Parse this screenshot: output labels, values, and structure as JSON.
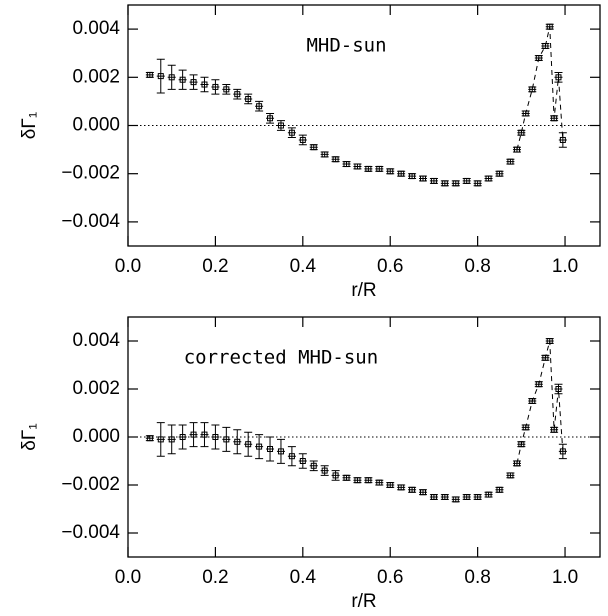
{
  "chart_data": [
    {
      "type": "errorbar-scatter",
      "annotation": "MHD-sun",
      "xlabel": "r/R",
      "ylabel": "δΓ₁",
      "xlim": [
        0,
        1.08
      ],
      "ylim": [
        -0.005,
        0.005
      ],
      "xticks": [
        {
          "value": 0,
          "label": "0.0"
        },
        0.2,
        0.4,
        0.6,
        0.8,
        {
          "value": 1,
          "label": "1.0"
        }
      ],
      "yticks": [
        {
          "value": -0.004,
          "label": "−0.004"
        },
        {
          "value": -0.002,
          "label": "−0.002"
        },
        {
          "value": 0,
          "label": "0.000"
        },
        0.002,
        0.004
      ],
      "reference_line": 0,
      "color": "#000000",
      "series": [
        {
          "line": "none",
          "x": [
            0.05,
            0.075,
            0.1,
            0.125,
            0.15,
            0.175,
            0.2,
            0.225,
            0.25,
            0.275,
            0.3,
            0.325,
            0.35,
            0.375,
            0.4,
            0.425,
            0.45,
            0.475,
            0.5,
            0.525,
            0.55,
            0.575,
            0.6,
            0.625,
            0.65,
            0.675,
            0.7,
            0.725,
            0.75,
            0.775,
            0.8,
            0.825,
            0.85,
            0.875
          ],
          "values": [
            0.0021,
            0.00205,
            0.002,
            0.0019,
            0.0018,
            0.0017,
            0.0016,
            0.0015,
            0.0013,
            0.0011,
            0.0008,
            0.0003,
            0.0,
            -0.0003,
            -0.0006,
            -0.0009,
            -0.0012,
            -0.0014,
            -0.0016,
            -0.0017,
            -0.0018,
            -0.0018,
            -0.0019,
            -0.002,
            -0.0021,
            -0.0022,
            -0.0023,
            -0.0024,
            -0.0024,
            -0.0023,
            -0.0024,
            -0.0022,
            -0.002,
            -0.0015
          ],
          "errors": [
            0.0001,
            0.0007,
            0.0005,
            0.0004,
            0.0003,
            0.0003,
            0.0003,
            0.0002,
            0.0002,
            0.0002,
            0.0002,
            0.0002,
            0.0002,
            0.0002,
            0.0002,
            0.0001,
            0.0001,
            0.0001,
            0.0001,
            0.0001,
            0.0001,
            0.0001,
            0.0001,
            0.0001,
            0.0001,
            0.0001,
            0.0001,
            0.0001,
            0.0001,
            0.0001,
            0.0001,
            0.0001,
            0.0001,
            0.0001
          ]
        },
        {
          "line": "dashed",
          "x": [
            0.89,
            0.9,
            0.91,
            0.925,
            0.94,
            0.955,
            0.965,
            0.975,
            0.985,
            0.995
          ],
          "values": [
            -0.001,
            -0.0003,
            0.0005,
            0.0015,
            0.0028,
            0.0033,
            0.0041,
            0.0003,
            0.002,
            -0.0006
          ],
          "errors": [
            0.0001,
            0.0001,
            0.0001,
            0.0001,
            0.0001,
            0.0001,
            0.0001,
            0.0001,
            0.0002,
            0.0003
          ]
        }
      ]
    },
    {
      "type": "errorbar-scatter",
      "annotation": "corrected MHD-sun",
      "xlabel": "r/R",
      "ylabel": "δΓ₁",
      "xlim": [
        0,
        1.08
      ],
      "ylim": [
        -0.005,
        0.005
      ],
      "xticks": [
        {
          "value": 0,
          "label": "0.0"
        },
        0.2,
        0.4,
        0.6,
        0.8,
        {
          "value": 1,
          "label": "1.0"
        }
      ],
      "yticks": [
        {
          "value": -0.004,
          "label": "−0.004"
        },
        {
          "value": -0.002,
          "label": "−0.002"
        },
        {
          "value": 0,
          "label": "0.000"
        },
        0.002,
        0.004
      ],
      "reference_line": 0,
      "color": "#000000",
      "series": [
        {
          "line": "none",
          "x": [
            0.05,
            0.075,
            0.1,
            0.125,
            0.15,
            0.175,
            0.2,
            0.225,
            0.25,
            0.275,
            0.3,
            0.325,
            0.35,
            0.375,
            0.4,
            0.425,
            0.45,
            0.475,
            0.5,
            0.525,
            0.55,
            0.575,
            0.6,
            0.625,
            0.65,
            0.675,
            0.7,
            0.725,
            0.75,
            0.775,
            0.8,
            0.825,
            0.85,
            0.875
          ],
          "values": [
            -5e-05,
            -0.0001,
            -0.0001,
            0.0,
            0.0001,
            0.0001,
            0.0,
            -0.0001,
            -0.0002,
            -0.0003,
            -0.0004,
            -0.0005,
            -0.0006,
            -0.0008,
            -0.001,
            -0.0012,
            -0.0014,
            -0.0016,
            -0.0017,
            -0.0018,
            -0.0018,
            -0.0019,
            -0.002,
            -0.0021,
            -0.0022,
            -0.0023,
            -0.0025,
            -0.0025,
            -0.0026,
            -0.0025,
            -0.0025,
            -0.0024,
            -0.0022,
            -0.0016
          ],
          "errors": [
            0.0001,
            0.0007,
            0.0006,
            0.0005,
            0.0005,
            0.0005,
            0.0005,
            0.0005,
            0.0005,
            0.0005,
            0.0005,
            0.0005,
            0.0005,
            0.0004,
            0.0003,
            0.0002,
            0.0002,
            0.0002,
            0.0001,
            0.0001,
            0.0001,
            0.0001,
            0.0001,
            0.0001,
            0.0001,
            0.0001,
            0.0001,
            0.0001,
            0.0001,
            0.0001,
            0.0001,
            0.0001,
            0.0001,
            0.0001
          ]
        },
        {
          "line": "dashed",
          "x": [
            0.89,
            0.9,
            0.91,
            0.925,
            0.94,
            0.955,
            0.965,
            0.975,
            0.985,
            0.995
          ],
          "values": [
            -0.0011,
            -0.0003,
            0.0004,
            0.0015,
            0.0022,
            0.0033,
            0.004,
            0.0003,
            0.002,
            -0.0006
          ],
          "errors": [
            0.0001,
            0.0001,
            0.0001,
            0.0001,
            0.0001,
            0.0001,
            0.0001,
            0.0001,
            0.0002,
            0.0003
          ]
        }
      ]
    }
  ]
}
